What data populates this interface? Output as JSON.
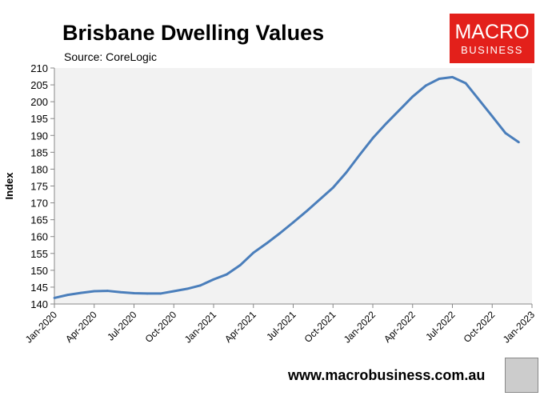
{
  "chart_data": {
    "type": "line",
    "title": "Brisbane Dwelling Values",
    "subtitle": "Source: CoreLogic",
    "xlabel": "",
    "ylabel": "Index",
    "ylim": [
      140,
      210
    ],
    "yticks": [
      140,
      145,
      150,
      155,
      160,
      165,
      170,
      175,
      180,
      185,
      190,
      195,
      200,
      205,
      210
    ],
    "xticks": [
      "Jan-2020",
      "Apr-2020",
      "Jul-2020",
      "Oct-2020",
      "Jan-2021",
      "Apr-2021",
      "Jul-2021",
      "Oct-2021",
      "Jan-2022",
      "Apr-2022",
      "Jul-2022",
      "Oct-2022",
      "Jan-2023"
    ],
    "grid": false,
    "line_color": "#4a7ebb",
    "plot_background": "#f2f2f2",
    "x": [
      "Jan-2020",
      "Feb-2020",
      "Mar-2020",
      "Apr-2020",
      "May-2020",
      "Jun-2020",
      "Jul-2020",
      "Aug-2020",
      "Sep-2020",
      "Oct-2020",
      "Nov-2020",
      "Dec-2020",
      "Jan-2021",
      "Feb-2021",
      "Mar-2021",
      "Apr-2021",
      "May-2021",
      "Jun-2021",
      "Jul-2021",
      "Aug-2021",
      "Sep-2021",
      "Oct-2021",
      "Nov-2021",
      "Dec-2021",
      "Jan-2022",
      "Feb-2022",
      "Mar-2022",
      "Apr-2022",
      "May-2022",
      "Jun-2022",
      "Jul-2022",
      "Aug-2022",
      "Sep-2022",
      "Oct-2022",
      "Nov-2022",
      "Dec-2022"
    ],
    "values": [
      141.8,
      142.7,
      143.3,
      143.8,
      143.9,
      143.5,
      143.2,
      143.1,
      143.1,
      143.8,
      144.5,
      145.5,
      147.3,
      148.8,
      151.5,
      155.2,
      158.0,
      161.0,
      164.2,
      167.5,
      171.0,
      174.5,
      179.0,
      184.2,
      189.2,
      193.5,
      197.5,
      201.5,
      204.8,
      206.8,
      207.3,
      205.5,
      200.6,
      195.7,
      190.7,
      188.0
    ]
  },
  "logo": {
    "line1": "MACRO",
    "line2": "BUSINESS",
    "color": "#e3201b"
  },
  "footer": {
    "url": "www.macrobusiness.com.au"
  }
}
